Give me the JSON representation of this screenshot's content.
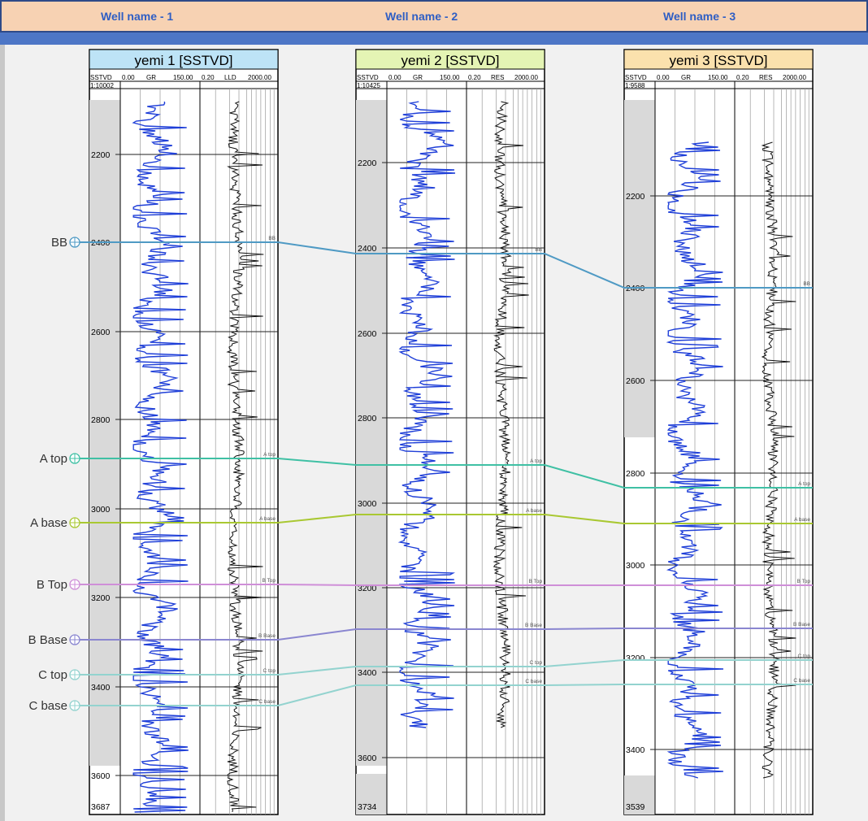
{
  "header": {
    "well_names": [
      "Well name - 1",
      "Well name - 2",
      "Well name - 3"
    ]
  },
  "wells": [
    {
      "title": "yemi 1 [SSTVD]",
      "header_color": "#bde3f6",
      "depth_label": "SSTVD",
      "gr_min": "0.00",
      "gr_label": "GR",
      "gr_max": "150.00",
      "res_min": "0.20",
      "res_label": "LLD",
      "res_max": "2000.00",
      "scale": "1:10002",
      "depth_ticks": [
        "2200",
        "2400",
        "2600",
        "2800",
        "3000",
        "3200",
        "3400",
        "3600"
      ],
      "bottom_depth": "3687"
    },
    {
      "title": "yemi 2 [SSTVD]",
      "header_color": "#e4f4b4",
      "depth_label": "SSTVD",
      "gr_min": "0.00",
      "gr_label": "GR",
      "gr_max": "150.00",
      "res_min": "0.20",
      "res_label": "RES",
      "res_max": "2000.00",
      "scale": "1:10425",
      "depth_ticks": [
        "2200",
        "2400",
        "2600",
        "2800",
        "3000",
        "3200",
        "3400",
        "3600"
      ],
      "bottom_depth": "3734"
    },
    {
      "title": "yemi 3 [SSTVD]",
      "header_color": "#fbe1ad",
      "depth_label": "SSTVD",
      "gr_min": "0.00",
      "gr_label": "GR",
      "gr_max": "150.00",
      "res_min": "0.20",
      "res_label": "RES",
      "res_max": "2000.00",
      "scale": "1:9588",
      "depth_ticks": [
        "2200",
        "2400",
        "2600",
        "2800",
        "3000",
        "3200",
        "3400"
      ],
      "bottom_depth": "3539"
    }
  ],
  "horizons": [
    {
      "name": "BB",
      "short": "BB",
      "color": "#4f9ac4"
    },
    {
      "name": "A top",
      "short": "A top",
      "color": "#3fc0a4"
    },
    {
      "name": "A base",
      "short": "A base",
      "color": "#a9c832"
    },
    {
      "name": "B Top",
      "short": "B Top",
      "color": "#cf8fd8"
    },
    {
      "name": "B Base",
      "short": "B Base",
      "color": "#8a86d0"
    },
    {
      "name": "C top",
      "short": "C top",
      "color": "#93d3cf"
    },
    {
      "name": "C base",
      "short": "C base",
      "color": "#93d3cf"
    }
  ],
  "colors": {
    "gr_curve": "#1f3fd8",
    "res_curve": "#111111",
    "depth_bg": "#d9d9d9",
    "banner_bg": "#f7d2b3",
    "banner_text": "#2f5ec4"
  }
}
